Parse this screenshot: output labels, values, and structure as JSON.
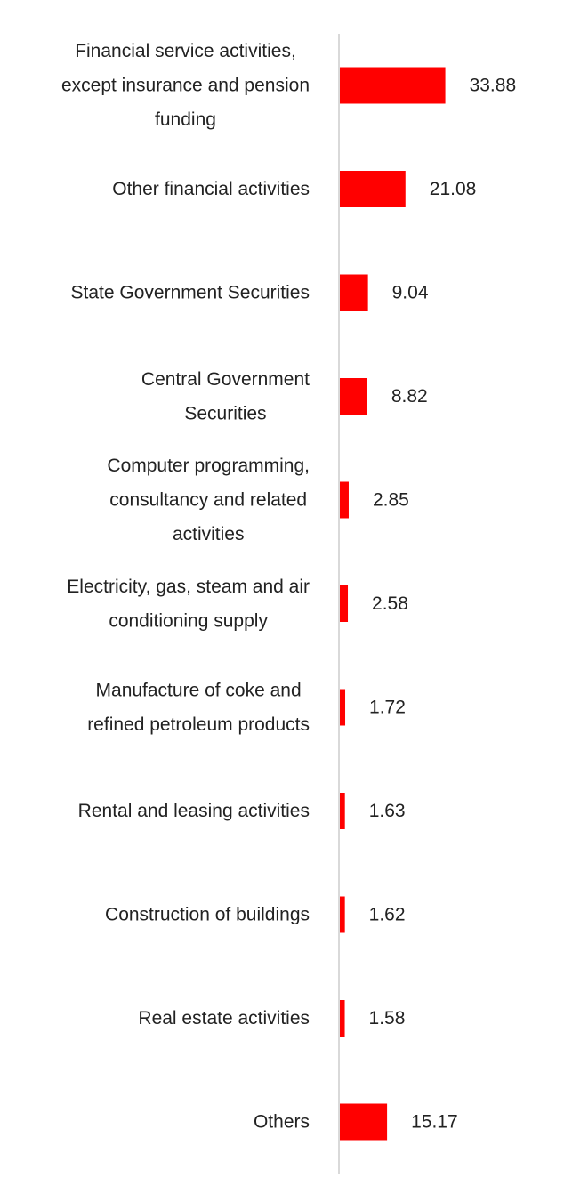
{
  "chart_data": {
    "type": "bar",
    "orientation": "horizontal",
    "title": "",
    "xlabel": "",
    "ylabel": "",
    "grid": false,
    "legend": "none",
    "categories": [
      [
        "Financial service activities,",
        "except insurance and pension",
        "funding"
      ],
      [
        "Other financial activities"
      ],
      [
        "State Government Securities"
      ],
      [
        "Central Government",
        "Securities"
      ],
      [
        "Computer programming,",
        "consultancy and related",
        "activities"
      ],
      [
        "Electricity, gas, steam and air",
        "conditioning supply"
      ],
      [
        "Manufacture of coke and",
        "refined petroleum products"
      ],
      [
        "Rental and leasing activities"
      ],
      [
        "Construction of buildings"
      ],
      [
        "Real estate activities"
      ],
      [
        "Others"
      ]
    ],
    "values": [
      33.88,
      21.08,
      9.04,
      8.82,
      2.85,
      2.58,
      1.72,
      1.63,
      1.62,
      1.58,
      15.17
    ],
    "value_labels": [
      "33.88",
      "21.08",
      "9.04",
      "8.82",
      "2.85",
      "2.58",
      "1.72",
      "1.63",
      "1.62",
      "1.58",
      "15.17"
    ],
    "xlim": [
      0,
      40
    ],
    "bar_color": "#ff0000",
    "axis_color": "#d9d9d9"
  }
}
